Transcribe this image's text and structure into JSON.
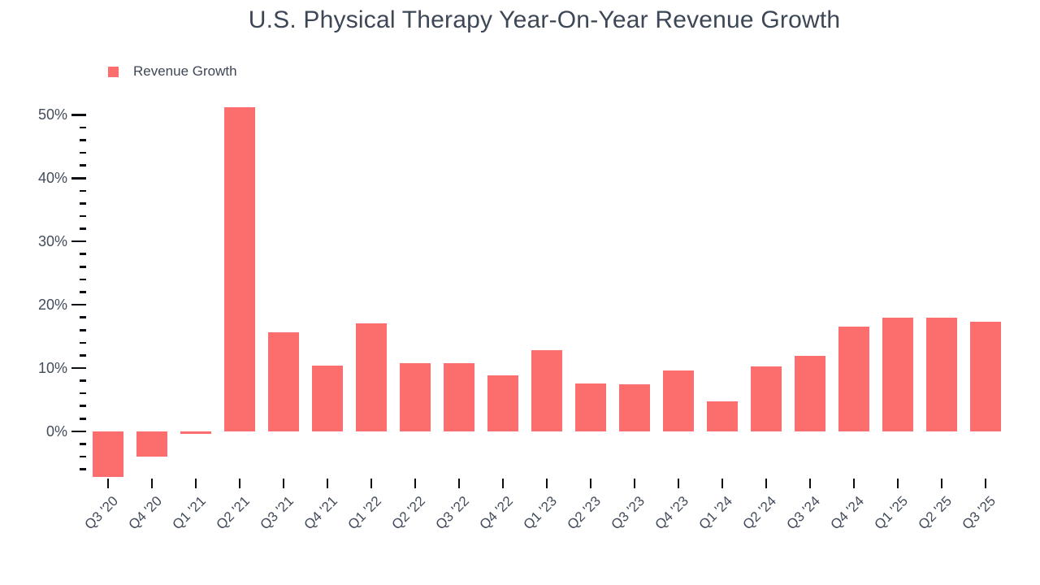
{
  "title": "U.S. Physical Therapy Year-On-Year Revenue Growth",
  "legend": {
    "label": "Revenue Growth",
    "color": "#fc6d6d"
  },
  "colors": {
    "bar": "#fc6d6d",
    "text": "#3e4756",
    "axis_text": "#434c5b",
    "tick": "#0b0e12",
    "background": "#ffffff"
  },
  "chart_data": {
    "type": "bar",
    "title": "U.S. Physical Therapy Year-On-Year Revenue Growth",
    "series_name": "Revenue Growth",
    "categories": [
      "Q3 '20",
      "Q4 '20",
      "Q1 '21",
      "Q2 '21",
      "Q3 '21",
      "Q4 '21",
      "Q1 '22",
      "Q2 '22",
      "Q3 '22",
      "Q4 '22",
      "Q1 '23",
      "Q2 '23",
      "Q3 '23",
      "Q4 '23",
      "Q1 '24",
      "Q2 '24",
      "Q3 '24",
      "Q4 '24",
      "Q1 '25",
      "Q2 '25",
      "Q3 '25"
    ],
    "values": [
      -7.2,
      -4.0,
      -0.4,
      51.2,
      15.6,
      10.4,
      17.1,
      10.8,
      10.8,
      8.8,
      12.8,
      7.6,
      7.4,
      9.6,
      4.7,
      10.2,
      11.9,
      16.5,
      18.0,
      18.0,
      17.3
    ],
    "value_unit": "%",
    "xlabel": "",
    "ylabel": "",
    "ylim": [
      -7.2,
      51.2
    ],
    "y_major_tick_values": [
      0,
      10,
      20,
      30,
      40,
      50
    ],
    "y_major_tick_labels": [
      "0%",
      "10%",
      "20%",
      "30%",
      "40%",
      "50%"
    ],
    "y_minor_tick_step": 2,
    "grid": false,
    "legend_position": "top-left",
    "x_label_rotation_deg": -45
  }
}
